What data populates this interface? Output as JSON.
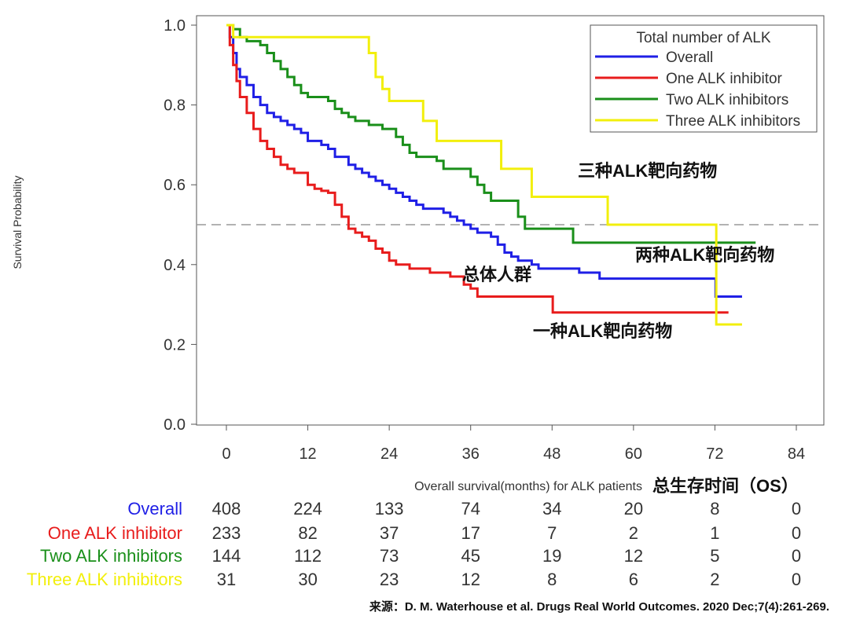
{
  "chart_data": {
    "type": "line",
    "step": true,
    "ylabel": "Survival Probability",
    "xlabel": "Overall survival(months) for ALK patients",
    "xlabel_cn": "总生存时间（OS）",
    "xlim": [
      0,
      84
    ],
    "ylim": [
      0,
      1
    ],
    "x_ticks": [
      "0",
      "12",
      "24",
      "36",
      "48",
      "60",
      "72",
      "84"
    ],
    "y_ticks": [
      "0.0",
      "0.2",
      "0.4",
      "0.6",
      "0.8",
      "1.0"
    ],
    "reference_line_y": 0.5,
    "grid": false,
    "legend": {
      "title": "Total number of ALK",
      "position": "top-right"
    },
    "series": [
      {
        "name": "Overall",
        "color": "#1f1fe6",
        "points": [
          [
            0,
            1.0
          ],
          [
            0.5,
            0.97
          ],
          [
            1,
            0.93
          ],
          [
            1.5,
            0.89
          ],
          [
            2,
            0.87
          ],
          [
            3,
            0.85
          ],
          [
            4,
            0.82
          ],
          [
            5,
            0.8
          ],
          [
            6,
            0.78
          ],
          [
            7,
            0.77
          ],
          [
            8,
            0.76
          ],
          [
            9,
            0.75
          ],
          [
            10,
            0.74
          ],
          [
            11,
            0.73
          ],
          [
            12,
            0.71
          ],
          [
            14,
            0.7
          ],
          [
            15,
            0.69
          ],
          [
            16,
            0.67
          ],
          [
            18,
            0.65
          ],
          [
            19,
            0.64
          ],
          [
            20,
            0.63
          ],
          [
            21,
            0.62
          ],
          [
            22,
            0.61
          ],
          [
            23,
            0.6
          ],
          [
            24,
            0.59
          ],
          [
            25,
            0.58
          ],
          [
            26,
            0.57
          ],
          [
            27,
            0.56
          ],
          [
            28,
            0.55
          ],
          [
            29,
            0.54
          ],
          [
            32,
            0.53
          ],
          [
            33,
            0.52
          ],
          [
            34,
            0.51
          ],
          [
            35,
            0.5
          ],
          [
            36,
            0.49
          ],
          [
            37,
            0.48
          ],
          [
            39,
            0.47
          ],
          [
            40,
            0.45
          ],
          [
            41,
            0.43
          ],
          [
            42,
            0.42
          ],
          [
            43,
            0.41
          ],
          [
            45,
            0.4
          ],
          [
            46,
            0.39
          ],
          [
            52,
            0.38
          ],
          [
            55,
            0.365
          ],
          [
            60,
            0.365
          ],
          [
            63,
            0.365
          ],
          [
            72,
            0.365
          ],
          [
            72.1,
            0.32
          ],
          [
            76,
            0.32
          ]
        ]
      },
      {
        "name": "One ALK inhibitor",
        "color": "#e81c1c",
        "points": [
          [
            0,
            1.0
          ],
          [
            0.5,
            0.95
          ],
          [
            1,
            0.9
          ],
          [
            1.5,
            0.86
          ],
          [
            2,
            0.82
          ],
          [
            3,
            0.78
          ],
          [
            4,
            0.74
          ],
          [
            5,
            0.71
          ],
          [
            6,
            0.69
          ],
          [
            7,
            0.67
          ],
          [
            8,
            0.65
          ],
          [
            9,
            0.64
          ],
          [
            10,
            0.63
          ],
          [
            11,
            0.63
          ],
          [
            12,
            0.6
          ],
          [
            13,
            0.59
          ],
          [
            14,
            0.585
          ],
          [
            15,
            0.58
          ],
          [
            16,
            0.55
          ],
          [
            17,
            0.52
          ],
          [
            18,
            0.49
          ],
          [
            19,
            0.48
          ],
          [
            20,
            0.47
          ],
          [
            21,
            0.46
          ],
          [
            22,
            0.44
          ],
          [
            23,
            0.43
          ],
          [
            24,
            0.41
          ],
          [
            25,
            0.4
          ],
          [
            27,
            0.39
          ],
          [
            30,
            0.38
          ],
          [
            33,
            0.37
          ],
          [
            34,
            0.37
          ],
          [
            35,
            0.35
          ],
          [
            36,
            0.34
          ],
          [
            37,
            0.32
          ],
          [
            44,
            0.32
          ],
          [
            48,
            0.32
          ],
          [
            48.1,
            0.28
          ],
          [
            60,
            0.28
          ],
          [
            72,
            0.28
          ],
          [
            74,
            0.28
          ]
        ]
      },
      {
        "name": "Two ALK inhibitors",
        "color": "#1a8f1a",
        "points": [
          [
            0,
            1.0
          ],
          [
            1,
            0.99
          ],
          [
            2,
            0.97
          ],
          [
            3,
            0.96
          ],
          [
            4,
            0.96
          ],
          [
            5,
            0.95
          ],
          [
            6,
            0.93
          ],
          [
            7,
            0.91
          ],
          [
            8,
            0.89
          ],
          [
            9,
            0.87
          ],
          [
            10,
            0.85
          ],
          [
            11,
            0.83
          ],
          [
            12,
            0.82
          ],
          [
            15,
            0.81
          ],
          [
            16,
            0.79
          ],
          [
            17,
            0.78
          ],
          [
            18,
            0.77
          ],
          [
            19,
            0.76
          ],
          [
            21,
            0.75
          ],
          [
            23,
            0.74
          ],
          [
            25,
            0.72
          ],
          [
            26,
            0.7
          ],
          [
            27,
            0.68
          ],
          [
            28,
            0.67
          ],
          [
            30,
            0.67
          ],
          [
            31,
            0.66
          ],
          [
            32,
            0.64
          ],
          [
            36,
            0.62
          ],
          [
            37,
            0.6
          ],
          [
            38,
            0.58
          ],
          [
            39,
            0.56
          ],
          [
            42,
            0.56
          ],
          [
            43,
            0.52
          ],
          [
            44,
            0.49
          ],
          [
            48,
            0.49
          ],
          [
            51,
            0.49
          ],
          [
            51.1,
            0.455
          ],
          [
            60,
            0.455
          ],
          [
            66,
            0.455
          ],
          [
            72,
            0.455
          ],
          [
            78,
            0.455
          ]
        ]
      },
      {
        "name": "Three ALK inhibitors",
        "color": "#f2ef0c",
        "points": [
          [
            0,
            1.0
          ],
          [
            1,
            0.97
          ],
          [
            20,
            0.97
          ],
          [
            21,
            0.93
          ],
          [
            22,
            0.87
          ],
          [
            23,
            0.84
          ],
          [
            24,
            0.81
          ],
          [
            28,
            0.81
          ],
          [
            29,
            0.76
          ],
          [
            31,
            0.71
          ],
          [
            36,
            0.71
          ],
          [
            40,
            0.71
          ],
          [
            40.5,
            0.64
          ],
          [
            44,
            0.64
          ],
          [
            45,
            0.57
          ],
          [
            56,
            0.57
          ],
          [
            56.2,
            0.5
          ],
          [
            72,
            0.5
          ],
          [
            72.2,
            0.25
          ],
          [
            76,
            0.25
          ]
        ]
      }
    ],
    "annotations": [
      {
        "text": "三种ALK靶向药物",
        "series": "Three ALK inhibitors"
      },
      {
        "text": "两种ALK靶向药物",
        "series": "Two ALK inhibitors"
      },
      {
        "text": "总体人群",
        "series": "Overall"
      },
      {
        "text": "一种ALK靶向药物",
        "series": "One ALK inhibitor"
      }
    ],
    "risk_table": {
      "rows": [
        {
          "label": "Overall",
          "color": "#1f1fe6",
          "counts": [
            "408",
            "224",
            "133",
            "74",
            "34",
            "20",
            "8",
            "0"
          ]
        },
        {
          "label": "One ALK inhibitor",
          "color": "#e81c1c",
          "counts": [
            "233",
            "82",
            "37",
            "17",
            "7",
            "2",
            "1",
            "0"
          ]
        },
        {
          "label": "Two ALK inhibitors",
          "color": "#1a8f1a",
          "counts": [
            "144",
            "112",
            "73",
            "45",
            "19",
            "12",
            "5",
            "0"
          ]
        },
        {
          "label": "Three ALK inhibitors",
          "color": "#f2ef0c",
          "counts": [
            "31",
            "30",
            "23",
            "12",
            "8",
            "6",
            "2",
            "0"
          ]
        }
      ]
    },
    "source": "来源：D. M. Waterhouse et al. Drugs Real World Outcomes. 2020 Dec;7(4):261-269."
  }
}
